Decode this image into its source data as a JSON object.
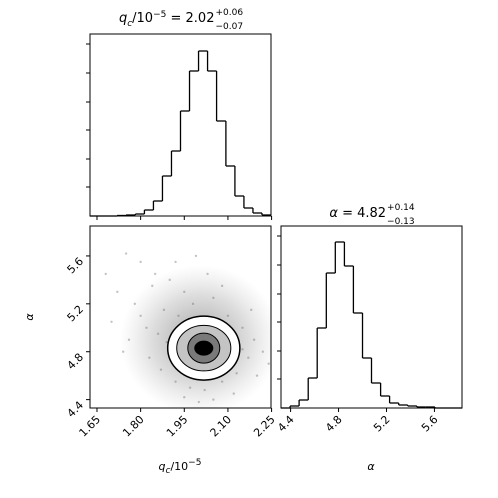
{
  "chart_data": [
    {
      "type": "histogram",
      "title": {
        "name": "q",
        "name_sub": "c",
        "unit": "/10",
        "unit_sup": "−5",
        "eq": " = 2.02",
        "upper": "+0.06",
        "lower": "−0.07"
      },
      "bins": [
        1.626,
        1.657,
        1.688,
        1.719,
        1.75,
        1.782,
        1.813,
        1.844,
        1.875,
        1.906,
        1.937,
        1.968,
        1.999,
        2.03,
        2.061,
        2.093,
        2.124,
        2.155,
        2.186,
        2.217,
        2.248
      ],
      "values": [
        0,
        0,
        0,
        0.5,
        1,
        2,
        6,
        15,
        40,
        65,
        105,
        145,
        165,
        145,
        95,
        50,
        20,
        8,
        3,
        1
      ],
      "color": "#000000",
      "xlim": [
        1.626,
        2.248
      ],
      "ylim": [
        0,
        182
      ],
      "xticks": [
        1.65,
        1.8,
        1.95,
        2.1,
        2.25
      ],
      "yticks": [
        29,
        57,
        86,
        114,
        143,
        172
      ]
    },
    {
      "type": "density2d",
      "xlabel": {
        "name": "q",
        "name_sub": "c",
        "unit": "/10",
        "unit_sup": "−5"
      },
      "ylabel": "α",
      "x": [
        1.75,
        1.8,
        1.85,
        1.72,
        1.78,
        1.84,
        1.9,
        1.95,
        1.88,
        1.93,
        1.98,
        2.05,
        2.0,
        2.1,
        2.15,
        1.82,
        1.86,
        1.9,
        1.87,
        1.92,
        1.97,
        2.02,
        2.08,
        2.13,
        2.17,
        2.19,
        2.2,
        2.22,
        2.12,
        1.95,
        2.05,
        1.7,
        1.76,
        1.68,
        1.83,
        2.24,
        1.92,
        2.03,
        2.08,
        1.96,
        2.09,
        1.89,
        2.15,
        1.99,
        2.06,
        1.8,
        1.74,
        1.99,
        2.18,
        2.0
      ],
      "y": [
        5.62,
        5.55,
        5.45,
        5.3,
        5.2,
        5.35,
        5.4,
        5.3,
        5.15,
        5.1,
        5.2,
        5.25,
        5.05,
        5.1,
        5.0,
        5.0,
        4.95,
        4.8,
        4.65,
        4.55,
        4.5,
        4.48,
        4.55,
        4.62,
        4.75,
        4.9,
        4.6,
        4.8,
        4.45,
        4.42,
        4.4,
        5.05,
        4.9,
        5.45,
        4.75,
        4.7,
        5.55,
        5.45,
        5.35,
        4.95,
        4.95,
        4.88,
        4.82,
        4.62,
        4.66,
        5.1,
        4.8,
        5.6,
        5.15,
        4.38
      ],
      "point_color": "#555555",
      "contours": [
        {
          "cx": 2.017,
          "cy": 4.83,
          "rx": 0.124,
          "ry": 0.267,
          "fill": "#ffffff"
        },
        {
          "cx": 2.017,
          "cy": 4.83,
          "rx": 0.093,
          "ry": 0.19,
          "fill": "#c4c4c4"
        },
        {
          "cx": 2.017,
          "cy": 4.83,
          "rx": 0.055,
          "ry": 0.125,
          "fill": "#7a7a7a"
        },
        {
          "cx": 2.017,
          "cy": 4.83,
          "rx": 0.031,
          "ry": 0.058,
          "fill": "#000000"
        }
      ],
      "xlim": [
        1.626,
        2.248
      ],
      "ylim": [
        4.33,
        5.85
      ],
      "xticks": [
        1.65,
        {
          "value": 1.8,
          "label": "1.80"
        },
        1.95,
        {
          "value": 2.1,
          "label": "2.10"
        },
        2.25
      ],
      "yticks": [
        4.4,
        4.8,
        5.2,
        5.6
      ]
    },
    {
      "type": "histogram",
      "title": {
        "name": "α",
        "eq": " = 4.82",
        "upper": "+0.14",
        "lower": "−0.13"
      },
      "xlabel": "α",
      "bins": [
        4.32,
        4.396,
        4.471,
        4.547,
        4.622,
        4.698,
        4.773,
        4.849,
        4.924,
        5.0,
        5.075,
        5.151,
        5.226,
        5.302,
        5.377,
        5.453,
        5.528,
        5.604,
        5.679,
        5.755,
        5.83
      ],
      "values": [
        0,
        2,
        8,
        30,
        80,
        135,
        166,
        142,
        95,
        50,
        25,
        12,
        5,
        3,
        2,
        1,
        1,
        0,
        0,
        0
      ],
      "color": "#000000",
      "xlim": [
        4.32,
        5.83
      ],
      "ylim": [
        0,
        182
      ],
      "xticks": [
        4.4,
        4.8,
        5.2,
        5.6
      ],
      "yticks": [
        29,
        57,
        86,
        114,
        143,
        172
      ]
    }
  ]
}
